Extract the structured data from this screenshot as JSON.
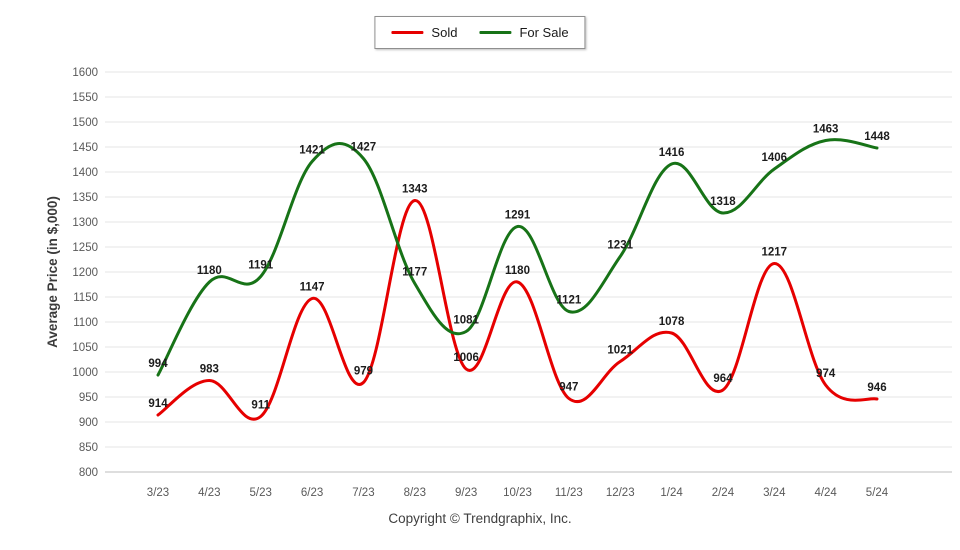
{
  "legend": {
    "items": [
      {
        "label": "Sold",
        "color": "#e60000"
      },
      {
        "label": "For Sale",
        "color": "#177317"
      }
    ]
  },
  "footer": {
    "copyright": "Copyright © Trendgraphix, Inc."
  },
  "chart_data": {
    "type": "line",
    "title": "",
    "ylabel": "Average Price (in $,000)",
    "xlabel": "",
    "x": [
      "3/23",
      "4/23",
      "5/23",
      "6/23",
      "7/23",
      "8/23",
      "9/23",
      "10/23",
      "11/23",
      "12/23",
      "1/24",
      "2/24",
      "3/24",
      "4/24",
      "5/24"
    ],
    "series": [
      {
        "name": "Sold",
        "color": "#e60000",
        "values": [
          914,
          983,
          911,
          1147,
          979,
          1343,
          1006,
          1180,
          947,
          1021,
          1078,
          964,
          1217,
          974,
          946
        ]
      },
      {
        "name": "For Sale",
        "color": "#177317",
        "values": [
          994,
          1180,
          1191,
          1421,
          1427,
          1177,
          1081,
          1291,
          1121,
          1231,
          1416,
          1318,
          1406,
          1463,
          1448
        ]
      }
    ],
    "ylim": [
      800,
      1600
    ],
    "ytick_step": 50,
    "grid": "horizontal",
    "legend_position": "top-center",
    "data_labels": true,
    "smooth": true
  }
}
